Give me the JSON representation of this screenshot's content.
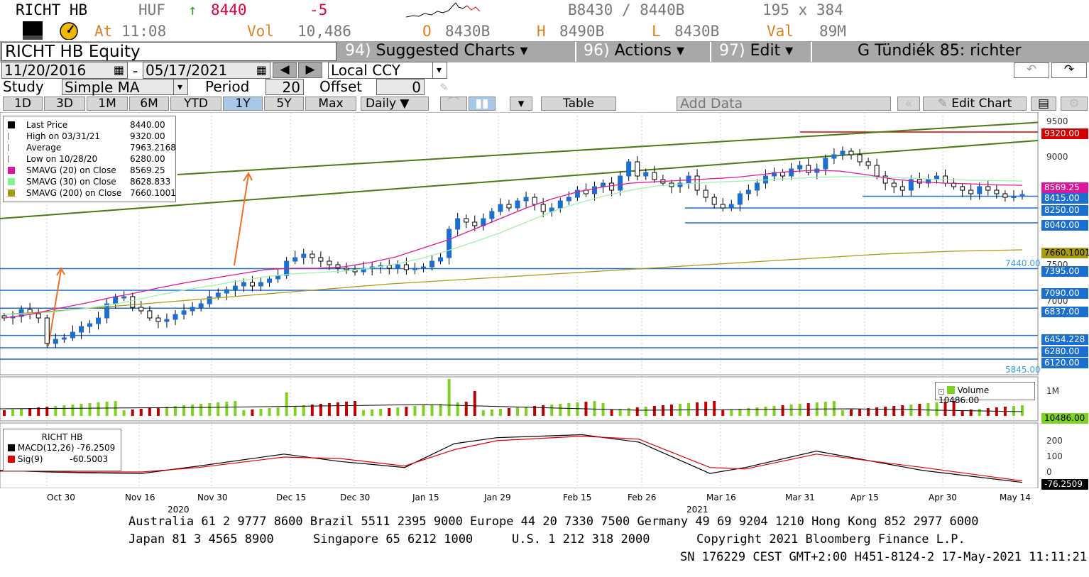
{
  "ticker": {
    "symbol": "RICHT HB",
    "currency": "HUF",
    "arrow": "↑",
    "last": "8440",
    "change": "-5",
    "bid_ask": "B8430 / 8440B",
    "size": "195 x 384",
    "at_label": "At",
    "time": "11:08",
    "vol_label": "Vol",
    "vol": "10,486",
    "open_label": "O",
    "open": "8430B",
    "high_label": "H",
    "high": "8490B",
    "low_label": "L",
    "low": "8430B",
    "val_label": "Val",
    "val": "89M"
  },
  "menu": {
    "security": "RICHT HB Equity",
    "suggested_num": "94)",
    "suggested": "Suggested Charts",
    "actions_num": "96)",
    "actions": "Actions",
    "edit_num": "97)",
    "edit": "Edit",
    "user": "G Tündiék 85: richter"
  },
  "dates": {
    "start": "11/20/2016",
    "sep": "-",
    "end": "05/17/2021",
    "currency_mode": "Local CCY"
  },
  "study": {
    "label": "Study",
    "value": "Simple MA",
    "period_label": "Period",
    "period": "20",
    "offset_label": "Offset",
    "offset": "0"
  },
  "tabs": [
    "1D",
    "3D",
    "1M",
    "6M",
    "YTD",
    "1Y",
    "5Y",
    "Max"
  ],
  "active_tab": "1Y",
  "toolbar": {
    "frequency": "Daily",
    "table": "Table",
    "add_data": "Add Data",
    "edit_chart": "Edit Chart"
  },
  "legend": {
    "rows": [
      {
        "label": "Last Price",
        "value": "8440.00",
        "color": "#000000"
      },
      {
        "label": "High on 03/31/21",
        "value": "9320.00",
        "color": "#666666"
      },
      {
        "label": "Average",
        "value": "7963.2168",
        "color": "#666666"
      },
      {
        "label": "Low on 10/28/20",
        "value": "6280.00",
        "color": "#666666"
      },
      {
        "label": "SMAVG (20)  on Close",
        "value": "8569.25",
        "color": "#e0169a"
      },
      {
        "label": "SMAVG (30)  on Close",
        "value": "8628.833",
        "color": "#7ef09a"
      },
      {
        "label": "SMAVG (200)  on Close",
        "value": "7660.1001",
        "color": "#a89a10"
      }
    ]
  },
  "price_axis": [
    "9500",
    "9000",
    "7500",
    "7000"
  ],
  "price_tags": [
    {
      "text": "9320.00",
      "bg": "#d40000",
      "fg": "#ffffff"
    },
    {
      "text": "8569.25",
      "bg": "#e0169a",
      "fg": "#ffffff"
    },
    {
      "text": "8415.00",
      "bg": "#1a6fd0",
      "fg": "#ffffff"
    },
    {
      "text": "8250.00",
      "bg": "#1a6fd0",
      "fg": "#ffffff"
    },
    {
      "text": "8040.00",
      "bg": "#1a6fd0",
      "fg": "#ffffff"
    },
    {
      "text": "7660.1001",
      "bg": "#a89a10",
      "fg": "#000000"
    },
    {
      "text": "7395.00",
      "bg": "#1a6fd0",
      "fg": "#ffffff"
    },
    {
      "text": "7090.00",
      "bg": "#1a6fd0",
      "fg": "#ffffff"
    },
    {
      "text": "6837.00",
      "bg": "#1a6fd0",
      "fg": "#ffffff"
    },
    {
      "text": "6454.228",
      "bg": "#1a6fd0",
      "fg": "#ffffff"
    },
    {
      "text": "6280.00",
      "bg": "#1a6fd0",
      "fg": "#ffffff"
    },
    {
      "text": "6120.00",
      "bg": "#1a6fd0",
      "fg": "#ffffff"
    }
  ],
  "faint_labels": [
    "7440.00",
    "5845.00"
  ],
  "volume": {
    "label": "Volume",
    "value": "10486.00",
    "axis": "1M",
    "tag": "10486.00"
  },
  "macd": {
    "title": "RICHT HB",
    "macd_label": "MACD(12,26)",
    "macd_value": "-76.2509",
    "sig_label": "Sig(9)",
    "sig_value": "-60.5003",
    "axis": [
      "200",
      "100",
      "0"
    ],
    "tag": "-76.2509"
  },
  "x_axis": [
    "Oct 30",
    "Nov 16",
    "Nov 30",
    "Dec 15",
    "Dec 30",
    "Jan 15",
    "Jan 29",
    "Feb 15",
    "Feb 26",
    "Mar 16",
    "Mar 31",
    "Apr 15",
    "Apr 30",
    "May 14"
  ],
  "years": [
    "2020",
    "2021"
  ],
  "footer": {
    "line1": "Australia 61 2 9777 8600 Brazil 5511 2395 9000 Europe 44 20 7330 7500 Germany 49 69 9204 1210 Hong Kong 852 2977 6000",
    "line2a": "Japan 81 3 4565 8900",
    "line2b": "Singapore 65 6212 1000",
    "line2c": "U.S. 1 212 318 2000",
    "line2d": "Copyright 2021 Bloomberg Finance L.P.",
    "line3": "SN 176229 CEST GMT+2:00 H451-8124-2 17-May-2021 11:11:21"
  },
  "colors": {
    "up": "#1a6fd0",
    "down": "#000000",
    "sma20": "#e0169a",
    "sma30": "#9ef0b0",
    "sma200": "#a89a10",
    "trend": "#4a7a10",
    "hline": "#1a6fd0",
    "arrow": "#f07020"
  },
  "chart_data": {
    "type": "candlestick",
    "series": [
      {
        "name": "Last Price",
        "values": [
          6700,
          6720,
          6820,
          6760,
          6700,
          6340,
          6400,
          6420,
          6500,
          6580,
          6620,
          6700,
          6900,
          7000,
          7000,
          6850,
          6800,
          6700,
          6650,
          6680,
          6750,
          6800,
          6850,
          6900,
          7000,
          7050,
          7100,
          7150,
          7200,
          7150,
          7200,
          7250,
          7300,
          7500,
          7550,
          7600,
          7550,
          7500,
          7450,
          7400,
          7380,
          7350,
          7400,
          7420,
          7440,
          7400,
          7450,
          7380,
          7400,
          7420,
          7500,
          7550,
          7950,
          8100,
          8050,
          8000,
          8100,
          8200,
          8300,
          8250,
          8350,
          8400,
          8300,
          8200,
          8250,
          8350,
          8400,
          8500,
          8450,
          8550,
          8600,
          8500,
          8700,
          8900,
          8700,
          8750,
          8650,
          8600,
          8550,
          8600,
          8700,
          8500,
          8400,
          8300,
          8250,
          8300,
          8450,
          8500,
          8600,
          8700,
          8750,
          8700,
          8800,
          8850,
          8750,
          8800,
          8950,
          9000,
          9050,
          9000,
          8900,
          8850,
          8700,
          8600,
          8550,
          8500,
          8650,
          8600,
          8650,
          8700,
          8600,
          8550,
          8500,
          8450,
          8550,
          8500,
          8450,
          8400,
          8415,
          8440
        ]
      }
    ],
    "sma20": [
      6700,
      6750,
      6830,
      6900,
      6980,
      7050,
      7130,
      7200,
      7260,
      7320,
      7380,
      7400,
      7400,
      7420,
      7480,
      7560,
      7680,
      7800,
      7950,
      8100,
      8250,
      8380,
      8480,
      8550,
      8600,
      8620,
      8640,
      8660,
      8680,
      8720,
      8760,
      8780,
      8770,
      8720,
      8660,
      8620,
      8600,
      8590,
      8575,
      8569
    ],
    "sma30": [
      6750,
      6760,
      6790,
      6830,
      6880,
      6950,
      7030,
      7100,
      7160,
      7220,
      7280,
      7320,
      7340,
      7360,
      7400,
      7460,
      7540,
      7650,
      7770,
      7900,
      8050,
      8200,
      8320,
      8420,
      8500,
      8560,
      8590,
      8610,
      8625,
      8640,
      8660,
      8680,
      8690,
      8690,
      8680,
      8665,
      8650,
      8640,
      8635,
      8629
    ],
    "sma200": [
      6750,
      6780,
      6820,
      6860,
      6900,
      6940,
      6980,
      7020,
      7060,
      7100,
      7140,
      7180,
      7210,
      7240,
      7270,
      7300,
      7330,
      7360,
      7390,
      7420,
      7450,
      7480,
      7510,
      7540,
      7570,
      7600,
      7620,
      7640,
      7650,
      7660
    ],
    "horizontal_levels": [
      9320,
      8415,
      8250,
      8040,
      7395,
      7090,
      6837,
      6454.228,
      6280,
      6120
    ],
    "ylim": [
      5900,
      9600
    ]
  }
}
